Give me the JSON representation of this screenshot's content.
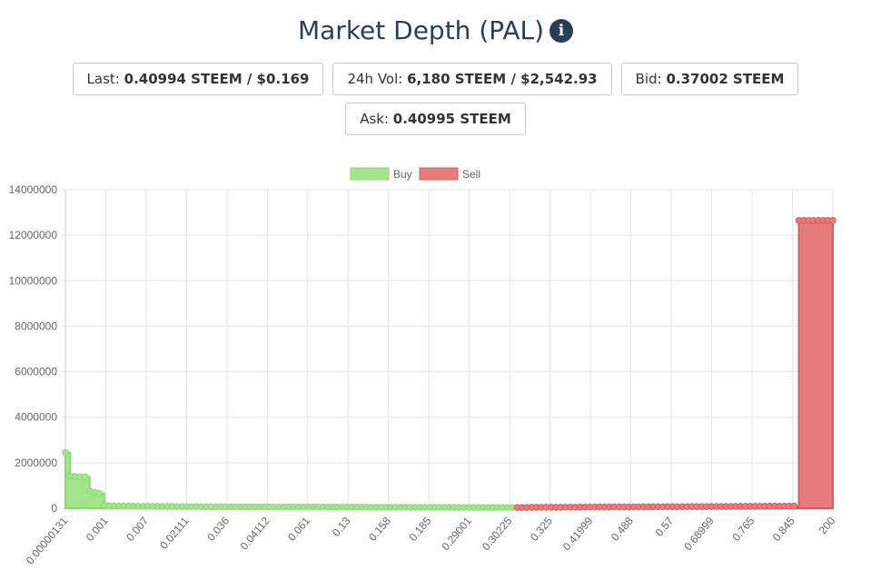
{
  "header": {
    "title": "Market Depth (PAL)",
    "info_icon": "info-icon"
  },
  "stats": {
    "last": {
      "label": "Last:",
      "value": "0.40994 STEEM / $0.169"
    },
    "vol": {
      "label": "24h Vol:",
      "value": "6,180 STEEM / $2,542.93"
    },
    "bid": {
      "label": "Bid:",
      "value": "0.37002 STEEM"
    },
    "ask": {
      "label": "Ask:",
      "value": "0.40995 STEEM"
    }
  },
  "colors": {
    "buy_fill": "#a3e58c",
    "buy_line": "#8bd872",
    "sell_fill": "#e87b7b",
    "sell_line": "#d95c5c",
    "grid": "#e5e5e5"
  },
  "chart_data": {
    "type": "area",
    "legend_position": "top",
    "grid": true,
    "ylim": [
      0,
      14000000
    ],
    "y_ticks": [
      "0",
      "2000000",
      "4000000",
      "6000000",
      "8000000",
      "10000000",
      "12000000",
      "14000000"
    ],
    "x_tick_labels": [
      "0.00000131",
      "0.001",
      "0.007",
      "0.02111",
      "0.036",
      "0.04112",
      "0.061",
      "0.13",
      "0.158",
      "0.185",
      "0.29001",
      "0.30225",
      "0.325",
      "0.41999",
      "0.488",
      "0.57",
      "0.68999",
      "0.765",
      "0.845",
      "200"
    ],
    "series": [
      {
        "name": "Buy",
        "values": [
          2450000,
          1400000,
          1400000,
          1380000,
          1380000,
          750000,
          700000,
          650000,
          130000,
          110000,
          100000,
          95000,
          95000,
          90000,
          90000,
          88000,
          85000,
          85000,
          82000,
          80000,
          80000,
          78000,
          76000,
          75000,
          74000,
          72000,
          70000,
          70000,
          68000,
          66000,
          65000,
          64000,
          63000,
          62000,
          61000,
          60000,
          59000,
          58000,
          58000,
          57000,
          56000,
          56000,
          55000,
          55000,
          54000,
          54000,
          53000,
          53000,
          52000,
          52000,
          51000,
          51000,
          50000,
          50000,
          49000,
          49000,
          48000,
          48000,
          47000,
          47000,
          46000,
          46000,
          45000,
          45000,
          44000,
          44000,
          43000,
          43000,
          42000,
          42000,
          41000,
          41000,
          40000,
          40000,
          39000,
          39000,
          38000,
          38000,
          37000,
          37000,
          36000,
          36000,
          35000,
          35000,
          34000,
          34000,
          33000,
          33000,
          32000,
          32000,
          31000,
          31000,
          30000
        ]
      },
      {
        "name": "Sell",
        "values": [
          30000,
          32000,
          34000,
          36000,
          38000,
          40000,
          41000,
          42000,
          43000,
          44000,
          45000,
          46000,
          47000,
          48000,
          49000,
          50000,
          51000,
          52000,
          53000,
          54000,
          55000,
          56000,
          57000,
          58000,
          59000,
          60000,
          61000,
          62000,
          63000,
          64000,
          65000,
          66000,
          67000,
          68000,
          69000,
          70000,
          71000,
          72000,
          73000,
          74000,
          75000,
          76000,
          77000,
          78000,
          79000,
          80000,
          81000,
          82000,
          83000,
          84000,
          85000,
          86000,
          87000,
          88000,
          89000,
          90000,
          91000,
          92000,
          12650000,
          12650000,
          12650000,
          12650000,
          12650000,
          12650000,
          12650000,
          12650000
        ]
      }
    ]
  }
}
